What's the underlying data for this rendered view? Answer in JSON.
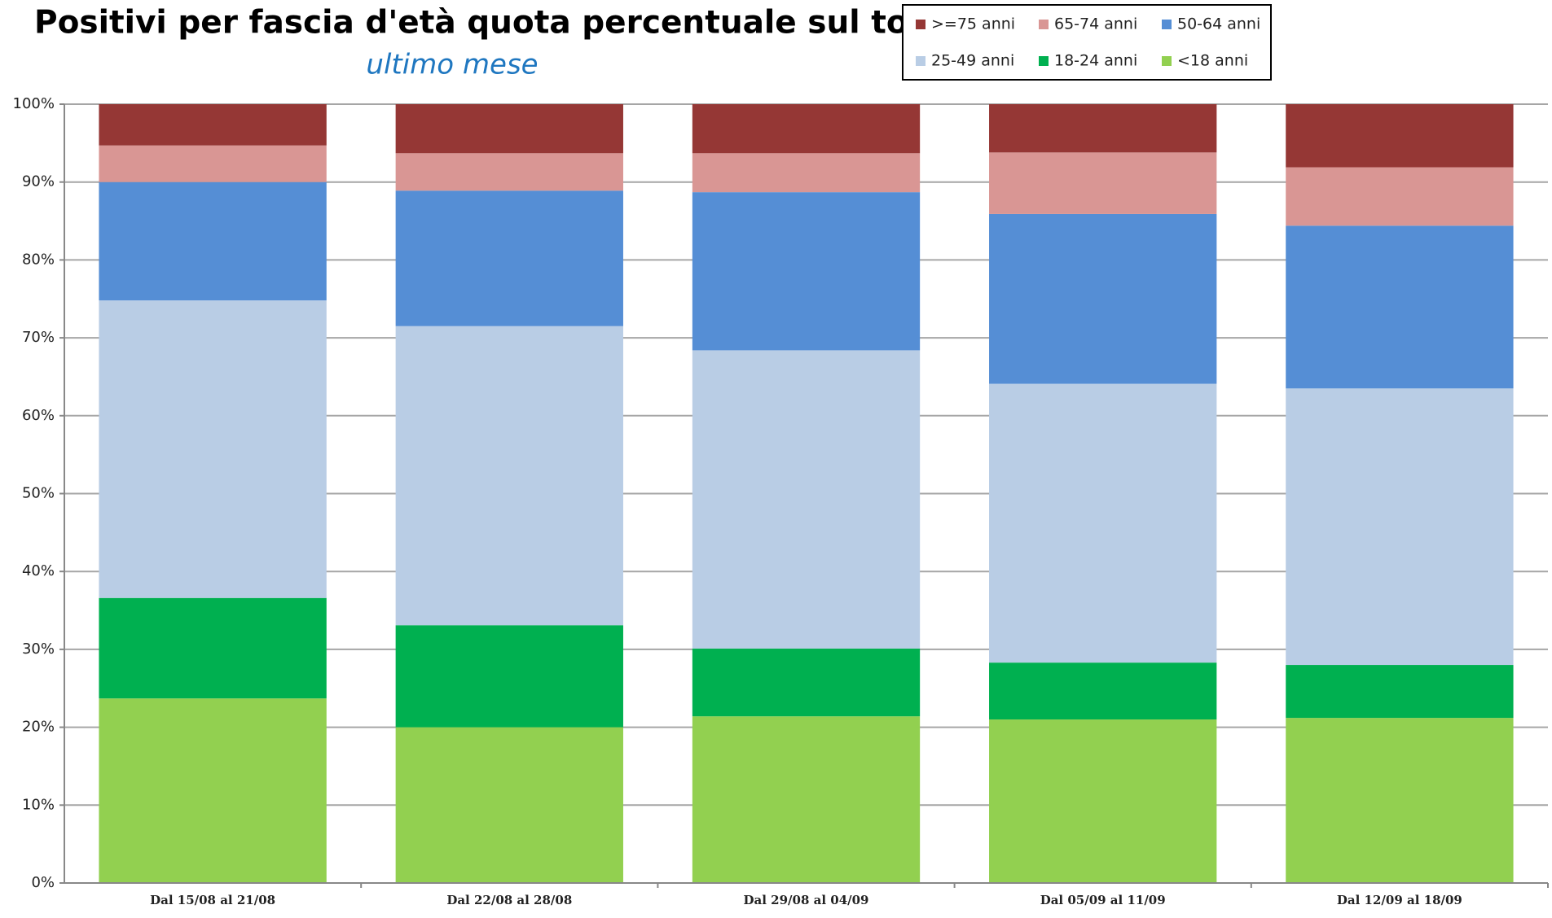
{
  "chart_data": {
    "type": "stacked_bar",
    "title": "Positivi per fascia d'età quota percentuale sul totale",
    "subtitle": "ultimo mese",
    "categories": [
      "Dal 15/08 al 21/08",
      "Dal 22/08 al 28/08",
      "Dal 29/08 al 04/09",
      "Dal 05/09 al 11/09",
      "Dal 12/09 al 18/09"
    ],
    "series": [
      {
        "name": "<18 anni",
        "color": "#92d050",
        "values": [
          23.7,
          20.0,
          21.4,
          21.0,
          21.2
        ]
      },
      {
        "name": "18-24 anni",
        "color": "#00b050",
        "values": [
          12.9,
          13.1,
          8.7,
          7.3,
          6.8
        ]
      },
      {
        "name": "25-49 anni",
        "color": "#b9cde5",
        "values": [
          38.2,
          38.4,
          38.3,
          35.8,
          35.5
        ]
      },
      {
        "name": "50-64 anni",
        "color": "#558ed5",
        "values": [
          15.2,
          17.4,
          20.3,
          21.8,
          20.9
        ]
      },
      {
        "name": "65-74 anni",
        "color": "#d99694",
        "values": [
          4.7,
          4.8,
          5.0,
          7.9,
          7.5
        ]
      },
      {
        "name": ">=75 anni",
        "color": "#953735",
        "values": [
          5.3,
          6.3,
          6.3,
          6.2,
          8.1
        ]
      }
    ],
    "ylim": [
      0,
      100
    ],
    "yticks": [
      {
        "value": 0,
        "label": "0%"
      },
      {
        "value": 10,
        "label": "10%"
      },
      {
        "value": 20,
        "label": "20%"
      },
      {
        "value": 30,
        "label": "30%"
      },
      {
        "value": 40,
        "label": "40%"
      },
      {
        "value": 50,
        "label": "50%"
      },
      {
        "value": 60,
        "label": "60%"
      },
      {
        "value": 70,
        "label": "70%"
      },
      {
        "value": 80,
        "label": "80%"
      },
      {
        "value": 90,
        "label": "90%"
      },
      {
        "value": 100,
        "label": "100%"
      }
    ],
    "grid": true
  }
}
